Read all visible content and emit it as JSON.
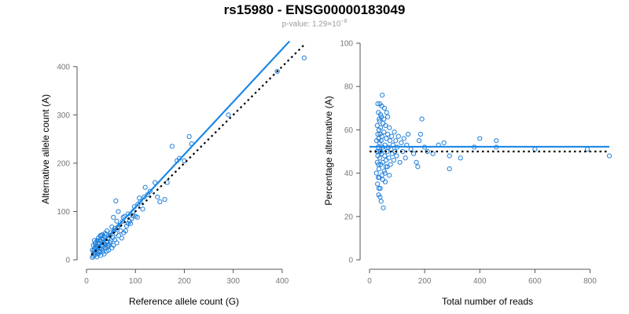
{
  "header": {
    "title": "rs15980 - ENSG00000183049",
    "subtitle_prefix": "p-value: 1.29×10",
    "subtitle_exponent": "−8"
  },
  "colors": {
    "points": "#1f7fd9",
    "fit_line": "#1e88e5",
    "reference_line": "#000000",
    "axis": "#555555"
  },
  "chart_data": [
    {
      "type": "scatter",
      "xlabel": "Reference allele count (G)",
      "ylabel": "Alternative allele count (A)",
      "xlim": [
        0,
        450
      ],
      "ylim": [
        0,
        450
      ],
      "xticks": [
        0,
        100,
        200,
        300,
        400
      ],
      "yticks": [
        0,
        100,
        200,
        300,
        400
      ],
      "fit_line": {
        "intercept": 0,
        "slope": 1.09,
        "x_range": [
          10,
          415
        ]
      },
      "reference_line": {
        "intercept": 0,
        "slope": 1.0,
        "x_range": [
          10,
          445
        ],
        "style": "dotted"
      },
      "points": [
        [
          12,
          5
        ],
        [
          14,
          8
        ],
        [
          15,
          18
        ],
        [
          16,
          22
        ],
        [
          17,
          10
        ],
        [
          18,
          25
        ],
        [
          19,
          14
        ],
        [
          20,
          30
        ],
        [
          21,
          6
        ],
        [
          22,
          20
        ],
        [
          23,
          28
        ],
        [
          24,
          12
        ],
        [
          25,
          35
        ],
        [
          26,
          18
        ],
        [
          27,
          24
        ],
        [
          28,
          40
        ],
        [
          29,
          9
        ],
        [
          30,
          30
        ],
        [
          31,
          22
        ],
        [
          32,
          45
        ],
        [
          33,
          16
        ],
        [
          34,
          28
        ],
        [
          35,
          36
        ],
        [
          36,
          12
        ],
        [
          37,
          48
        ],
        [
          38,
          24
        ],
        [
          39,
          32
        ],
        [
          40,
          52
        ],
        [
          41,
          18
        ],
        [
          42,
          38
        ],
        [
          43,
          26
        ],
        [
          44,
          44
        ],
        [
          45,
          20
        ],
        [
          46,
          30
        ],
        [
          48,
          50
        ],
        [
          50,
          40
        ],
        [
          52,
          25
        ],
        [
          54,
          46
        ],
        [
          55,
          30
        ],
        [
          56,
          60
        ],
        [
          58,
          42
        ],
        [
          60,
          55
        ],
        [
          62,
          35
        ],
        [
          64,
          68
        ],
        [
          66,
          50
        ],
        [
          68,
          72
        ],
        [
          70,
          60
        ],
        [
          72,
          45
        ],
        [
          74,
          80
        ],
        [
          76,
          56
        ],
        [
          78,
          90
        ],
        [
          80,
          60
        ],
        [
          82,
          70
        ],
        [
          85,
          95
        ],
        [
          88,
          80
        ],
        [
          90,
          75
        ],
        [
          92,
          85
        ],
        [
          95,
          100
        ],
        [
          98,
          110
        ],
        [
          100,
          90
        ],
        [
          104,
          88
        ],
        [
          108,
          128
        ],
        [
          110,
          120
        ],
        [
          115,
          105
        ],
        [
          120,
          150
        ],
        [
          125,
          135
        ],
        [
          130,
          142
        ],
        [
          140,
          160
        ],
        [
          145,
          130
        ],
        [
          150,
          120
        ],
        [
          160,
          125
        ],
        [
          165,
          160
        ],
        [
          175,
          235
        ],
        [
          185,
          205
        ],
        [
          190,
          210
        ],
        [
          200,
          205
        ],
        [
          210,
          255
        ],
        [
          215,
          240
        ],
        [
          290,
          300
        ],
        [
          390,
          390
        ],
        [
          445,
          418
        ],
        [
          60,
          122
        ],
        [
          55,
          88
        ],
        [
          65,
          100
        ],
        [
          30,
          50
        ],
        [
          25,
          40
        ],
        [
          35,
          42
        ],
        [
          20,
          26
        ],
        [
          15,
          14
        ],
        [
          18,
          32
        ],
        [
          22,
          40
        ],
        [
          28,
          50
        ],
        [
          32,
          52
        ],
        [
          26,
          16
        ],
        [
          38,
          55
        ],
        [
          42,
          60
        ],
        [
          14,
          30
        ],
        [
          12,
          20
        ],
        [
          16,
          40
        ],
        [
          24,
          45
        ],
        [
          19,
          36
        ],
        [
          33,
          20
        ],
        [
          36,
          34
        ],
        [
          44,
          30
        ],
        [
          48,
          36
        ],
        [
          50,
          56
        ],
        [
          52,
          68
        ],
        [
          58,
          65
        ],
        [
          62,
          80
        ],
        [
          75,
          88
        ],
        [
          85,
          75
        ],
        [
          95,
          92
        ],
        [
          105,
          115
        ],
        [
          118,
          130
        ]
      ]
    },
    {
      "type": "scatter",
      "xlabel": "Total number of reads",
      "ylabel": "Percentage alternative (A)",
      "xlim": [
        0,
        870
      ],
      "ylim": [
        0,
        100
      ],
      "xticks": [
        0,
        200,
        400,
        600,
        800
      ],
      "yticks": [
        0,
        20,
        40,
        60,
        80,
        100
      ],
      "fit_line": {
        "value": 52.2
      },
      "reference_line": {
        "value": 50,
        "style": "dotted"
      },
      "points": [
        [
          25,
          40
        ],
        [
          26,
          55
        ],
        [
          27,
          50
        ],
        [
          28,
          62
        ],
        [
          28,
          45
        ],
        [
          29,
          35
        ],
        [
          30,
          58
        ],
        [
          30,
          48
        ],
        [
          31,
          52
        ],
        [
          32,
          68
        ],
        [
          32,
          44
        ],
        [
          33,
          30
        ],
        [
          33,
          56
        ],
        [
          34,
          60
        ],
        [
          34,
          42
        ],
        [
          35,
          50
        ],
        [
          35,
          65
        ],
        [
          36,
          38
        ],
        [
          36,
          54
        ],
        [
          37,
          47
        ],
        [
          38,
          72
        ],
        [
          38,
          58
        ],
        [
          39,
          33
        ],
        [
          40,
          50
        ],
        [
          40,
          61
        ],
        [
          41,
          44
        ],
        [
          42,
          27
        ],
        [
          42,
          55
        ],
        [
          43,
          66
        ],
        [
          44,
          49
        ],
        [
          45,
          57
        ],
        [
          45,
          39
        ],
        [
          46,
          76
        ],
        [
          47,
          52
        ],
        [
          48,
          45
        ],
        [
          49,
          63
        ],
        [
          50,
          24
        ],
        [
          50,
          51
        ],
        [
          52,
          59
        ],
        [
          53,
          41
        ],
        [
          54,
          70
        ],
        [
          55,
          48
        ],
        [
          56,
          53
        ],
        [
          57,
          36
        ],
        [
          58,
          62
        ],
        [
          60,
          46
        ],
        [
          61,
          56
        ],
        [
          62,
          68
        ],
        [
          64,
          50
        ],
        [
          65,
          43
        ],
        [
          66,
          58
        ],
        [
          68,
          52
        ],
        [
          70,
          47
        ],
        [
          72,
          61
        ],
        [
          74,
          55
        ],
        [
          76,
          44
        ],
        [
          78,
          51
        ],
        [
          80,
          57
        ],
        [
          82,
          49
        ],
        [
          85,
          53
        ],
        [
          88,
          46
        ],
        [
          90,
          59
        ],
        [
          92,
          50
        ],
        [
          95,
          55
        ],
        [
          98,
          48
        ],
        [
          100,
          52
        ],
        [
          105,
          57
        ],
        [
          110,
          45
        ],
        [
          115,
          54
        ],
        [
          120,
          50
        ],
        [
          125,
          56
        ],
        [
          130,
          47
        ],
        [
          135,
          53
        ],
        [
          140,
          58
        ],
        [
          150,
          51
        ],
        [
          160,
          49
        ],
        [
          170,
          45
        ],
        [
          175,
          43
        ],
        [
          180,
          55
        ],
        [
          185,
          58
        ],
        [
          190,
          65
        ],
        [
          200,
          52
        ],
        [
          210,
          50
        ],
        [
          230,
          49
        ],
        [
          250,
          53
        ],
        [
          270,
          54
        ],
        [
          290,
          48
        ],
        [
          290,
          42
        ],
        [
          330,
          47
        ],
        [
          380,
          52
        ],
        [
          400,
          56
        ],
        [
          460,
          52
        ],
        [
          460,
          55
        ],
        [
          600,
          51
        ],
        [
          790,
          51
        ],
        [
          870,
          48
        ],
        [
          30,
          72
        ],
        [
          32,
          38
        ],
        [
          34,
          33
        ],
        [
          36,
          64
        ],
        [
          38,
          29
        ],
        [
          40,
          67
        ],
        [
          44,
          71
        ],
        [
          48,
          37
        ],
        [
          52,
          65
        ],
        [
          56,
          40
        ],
        [
          60,
          43
        ],
        [
          66,
          66
        ],
        [
          72,
          39
        ]
      ]
    }
  ]
}
